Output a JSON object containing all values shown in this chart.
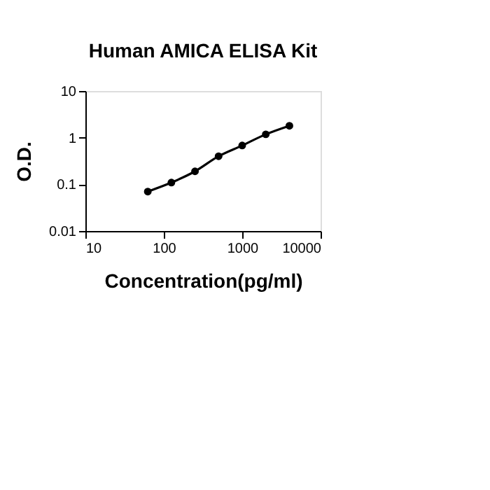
{
  "chart_data": {
    "type": "line",
    "title": "Human AMICA ELISA Kit",
    "xlabel": "Concentration(pg/ml)",
    "ylabel": "O.D.",
    "log": "xy",
    "xlim": [
      10,
      10000
    ],
    "xticks": [
      10,
      100,
      1000,
      10000
    ],
    "ylim": [
      0.01,
      10
    ],
    "yticks": [
      0.01,
      0.1,
      1,
      10
    ],
    "x": [
      62.5,
      125,
      250,
      500,
      1000,
      2000,
      4000
    ],
    "series": [
      {
        "color": "#000000",
        "values": [
          0.07,
          0.109,
          0.19,
          0.4,
          0.68,
          1.18,
          1.8
        ]
      }
    ],
    "marker": "circle",
    "line_style": "solid",
    "grid": false
  }
}
